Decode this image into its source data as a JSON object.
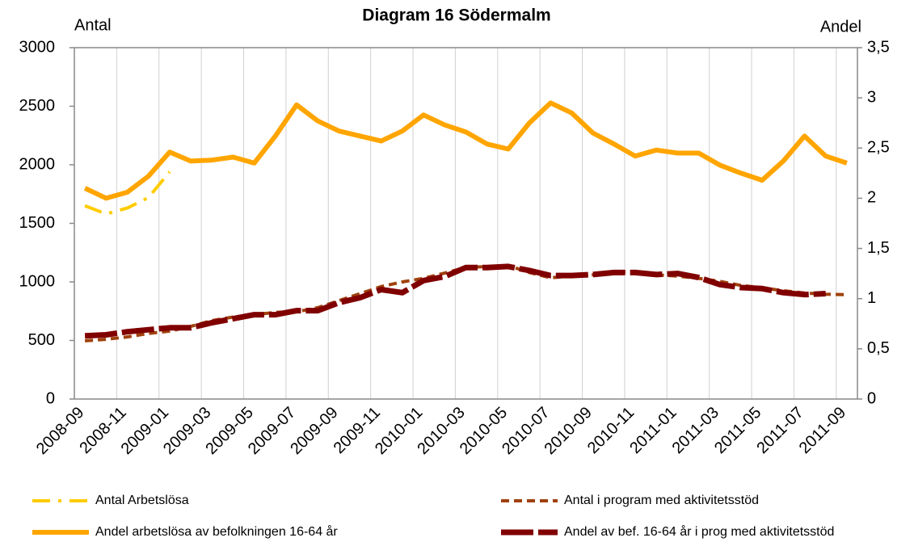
{
  "chart_data": {
    "type": "line",
    "title": "Diagram 16 Södermalm",
    "y_label": "Antal",
    "y2_label": "Andel",
    "categories": [
      "2008-09",
      null,
      "2008-11",
      null,
      "2009-01",
      null,
      "2009-03",
      null,
      "2009-05",
      null,
      "2009-07",
      null,
      "2009-09",
      null,
      "2009-11",
      null,
      "2010-01",
      null,
      "2010-03",
      null,
      "2010-05",
      null,
      "2010-07",
      null,
      "2010-09",
      null,
      "2010-11",
      null,
      "2011-01",
      null,
      "2011-03",
      null,
      "2011-05",
      null,
      "2011-07",
      null,
      "2011-09"
    ],
    "ylim": [
      0,
      3000
    ],
    "yticks": [
      0,
      500,
      1000,
      1500,
      2000,
      2500,
      3000
    ],
    "y2lim": [
      0,
      3.5
    ],
    "y2ticks": [
      0,
      {
        "value": 0.5,
        "label": "0,5"
      },
      1,
      {
        "value": 1.5,
        "label": "1,5"
      },
      2,
      {
        "value": 2.5,
        "label": "2,5"
      },
      3,
      {
        "value": 3.5,
        "label": "3,5"
      }
    ],
    "grid": true,
    "series": [
      {
        "name": "Antal Arbetslösa",
        "color": "#ffcc00",
        "style": "dashdot",
        "values": [
          1650,
          1580,
          1630,
          1720,
          1940,
          null,
          null,
          null,
          null,
          null,
          null,
          null,
          null,
          null,
          null,
          null,
          null,
          null,
          null,
          null,
          null,
          null,
          null,
          null,
          null,
          null,
          null,
          null,
          null,
          null,
          null,
          null,
          null,
          null,
          null,
          null,
          null
        ]
      },
      {
        "name": "Antal i program med aktivitetsstöd",
        "color": "#a0410d",
        "style": "dashed",
        "values": [
          497,
          510,
          530,
          560,
          580,
          620,
          670,
          700,
          720,
          740,
          745,
          780,
          840,
          900,
          960,
          1000,
          1030,
          1075,
          1125,
          1130,
          1140,
          1080,
          1035,
          1050,
          1060,
          1080,
          1090,
          1060,
          1050,
          1030,
          1005,
          970,
          950,
          925,
          905,
          895,
          890
        ]
      },
      {
        "name": "Andel arbetslösa av befolkningen 16-64 år",
        "color": "#ffa500",
        "style": "solid",
        "axis": "y2",
        "values": [
          2.1,
          2.0,
          2.06,
          2.22,
          2.46,
          2.37,
          2.38,
          2.41,
          2.35,
          2.62,
          2.93,
          2.77,
          2.67,
          2.62,
          2.57,
          2.67,
          2.83,
          2.73,
          2.66,
          2.54,
          2.49,
          2.75,
          2.95,
          2.85,
          2.65,
          2.54,
          2.42,
          2.48,
          2.45,
          2.45,
          2.33,
          2.25,
          2.18,
          2.37,
          2.62,
          2.42,
          2.35
        ]
      },
      {
        "name": "Andel av bef. 16-64 år i prog med aktivitetsstöd",
        "color": "#800000",
        "style": "longdash",
        "axis": "y2",
        "values": [
          0.63,
          0.64,
          0.67,
          0.69,
          0.71,
          0.71,
          0.76,
          0.8,
          0.84,
          0.84,
          0.88,
          0.88,
          0.96,
          1.01,
          1.09,
          1.06,
          1.18,
          1.22,
          1.31,
          1.31,
          1.32,
          1.28,
          1.23,
          1.23,
          1.24,
          1.26,
          1.26,
          1.24,
          1.25,
          1.21,
          1.14,
          1.11,
          1.1,
          1.06,
          1.04,
          1.05,
          null
        ]
      }
    ]
  }
}
